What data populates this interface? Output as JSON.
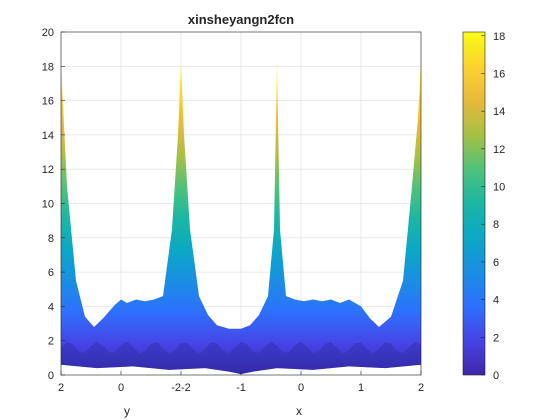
{
  "chart_data": {
    "type": "area",
    "title": "xinsheyangn2fcn",
    "xlabel_left": "y",
    "xlabel_right": "x",
    "ylim": [
      0,
      20
    ],
    "yticks": [
      0,
      2,
      4,
      6,
      8,
      10,
      12,
      14,
      16,
      18,
      20
    ],
    "xtick_labels": [
      "2",
      "0",
      "-2-2",
      "-1",
      "0",
      "1",
      "2"
    ],
    "xtick_positions": [
      0,
      1,
      2,
      3,
      4,
      5,
      6
    ],
    "xrange": [
      0,
      6
    ],
    "surface_top": {
      "x": [
        0,
        0.1,
        0.25,
        0.4,
        0.55,
        0.7,
        0.9,
        1.0,
        1.1,
        1.25,
        1.4,
        1.55,
        1.7,
        1.85,
        1.95,
        2.0,
        2.05,
        2.15,
        2.3,
        2.45,
        2.6,
        2.8,
        3.0,
        3.15,
        3.3,
        3.45,
        3.55,
        3.6,
        3.65,
        3.75,
        3.9,
        4.05,
        4.2,
        4.35,
        4.5,
        4.65,
        4.8,
        5.0,
        5.15,
        5.3,
        5.5,
        5.7,
        5.85,
        5.95,
        6.0
      ],
      "y": [
        18.2,
        11.0,
        5.5,
        3.4,
        2.8,
        3.3,
        4.1,
        4.4,
        4.2,
        4.4,
        4.3,
        4.4,
        4.6,
        8.5,
        14.0,
        18.2,
        14.0,
        8.5,
        4.6,
        3.5,
        2.9,
        2.7,
        2.7,
        2.9,
        3.5,
        4.6,
        8.5,
        18.2,
        8.5,
        4.6,
        4.4,
        4.3,
        4.4,
        4.3,
        4.4,
        4.2,
        4.4,
        4.0,
        3.3,
        2.8,
        3.4,
        5.5,
        11.0,
        15.0,
        18.2
      ]
    },
    "surface_bottom": {
      "x": [
        0,
        0.6,
        1.2,
        1.8,
        2.4,
        2.8,
        3.0,
        3.2,
        3.6,
        4.2,
        4.8,
        5.4,
        6.0
      ],
      "y": [
        0.6,
        0.4,
        0.5,
        0.3,
        0.4,
        0.2,
        0.05,
        0.2,
        0.4,
        0.3,
        0.5,
        0.4,
        0.6
      ]
    },
    "colorbar": {
      "ticks": [
        0,
        2,
        4,
        6,
        8,
        10,
        12,
        14,
        16,
        18
      ],
      "range": [
        0,
        18.2
      ],
      "colormap": [
        "#3e26a8",
        "#4744e5",
        "#2e6ffe",
        "#1a8ee3",
        "#0ba7c6",
        "#1ab7a4",
        "#4fc17b",
        "#a6c044",
        "#e8b93a",
        "#fcd32d",
        "#f9fb15"
      ]
    },
    "grid": true
  }
}
